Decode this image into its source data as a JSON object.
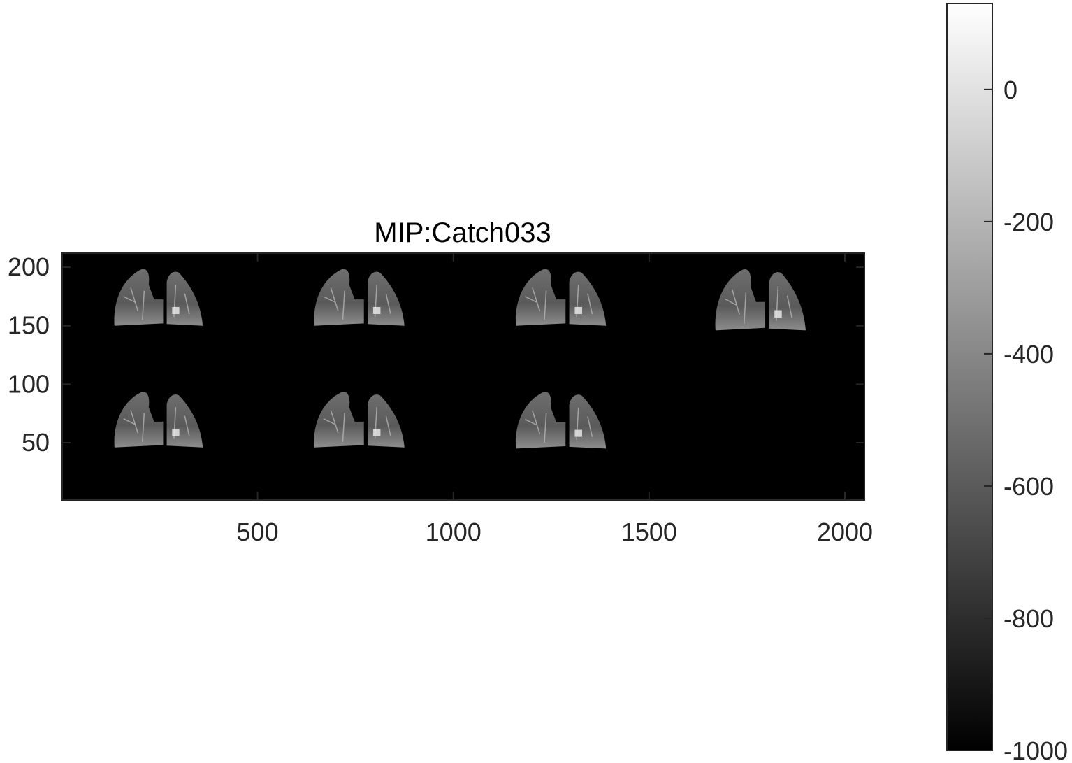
{
  "chart_data": {
    "type": "heatmap",
    "title": "MIP:Catch033",
    "xlabel": "",
    "ylabel": "",
    "xlim": [
      1,
      2050
    ],
    "ylim": [
      1,
      212
    ],
    "xticks": [
      500,
      1000,
      1500,
      2000
    ],
    "xtick_labels": [
      "500",
      "1000",
      "1500",
      "2000"
    ],
    "yticks": [
      50,
      100,
      150,
      200
    ],
    "ytick_labels": [
      "50",
      "100",
      "150",
      "200"
    ],
    "grid": false,
    "image": {
      "description_panels": [
        {
          "row": 1,
          "col": 1,
          "x_range": [
            130,
            360
          ],
          "y_range": [
            150,
            200
          ]
        },
        {
          "row": 1,
          "col": 2,
          "x_range": [
            640,
            875
          ],
          "y_range": [
            150,
            200
          ]
        },
        {
          "row": 1,
          "col": 3,
          "x_range": [
            1155,
            1390
          ],
          "y_range": [
            150,
            200
          ]
        },
        {
          "row": 1,
          "col": 4,
          "x_range": [
            1665,
            1900
          ],
          "y_range": [
            146,
            200
          ]
        },
        {
          "row": 2,
          "col": 1,
          "x_range": [
            130,
            360
          ],
          "y_range": [
            46,
            95
          ]
        },
        {
          "row": 2,
          "col": 2,
          "x_range": [
            640,
            875
          ],
          "y_range": [
            46,
            95
          ]
        },
        {
          "row": 2,
          "col": 3,
          "x_range": [
            1155,
            1390
          ],
          "y_range": [
            45,
            95
          ]
        }
      ],
      "background_value": -1000
    },
    "colorbar": {
      "colormap": "gray",
      "range": [
        -1000,
        130
      ],
      "ticks": [
        0,
        -200,
        -400,
        -600,
        -800,
        -1000
      ],
      "tick_labels": [
        "0",
        "-200",
        "-400",
        "-600",
        "-800",
        "-1000"
      ],
      "position": "right"
    },
    "colors": {
      "axes_edge": "#262626",
      "image_background": "#000000",
      "tissue": "#8a8a8a"
    }
  }
}
